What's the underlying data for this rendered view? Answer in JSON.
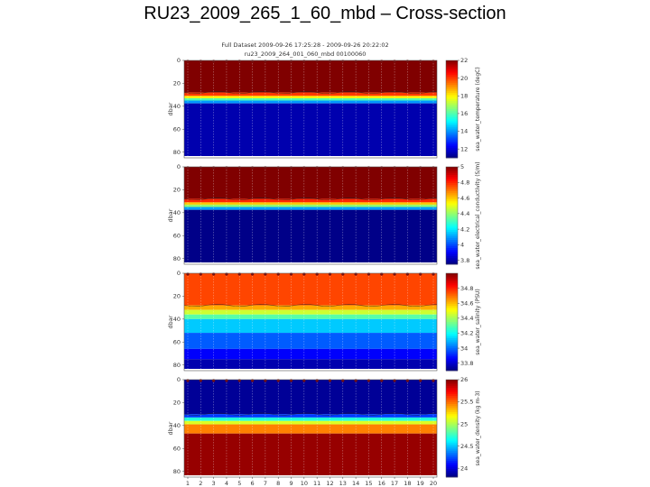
{
  "slide": {
    "title": "RU23_2009_265_1_60_mbd – Cross-section"
  },
  "figure": {
    "header_line1": "Full Dataset 2009-09-26 17:25:28 - 2009-09-26 20:22:02",
    "header_line2": "ru23_2009_264_001_060_mbd 00100060"
  },
  "chart_data": [
    {
      "type": "heatmap",
      "name": "temperature",
      "ylabel": "dbar",
      "ylim": [
        85,
        0
      ],
      "yticks": [
        0,
        20,
        40,
        60,
        80
      ],
      "colorbar": {
        "label": "sea_water_temperature (degC)",
        "range": [
          11,
          22
        ],
        "ticks": [
          22,
          20,
          18,
          16,
          14,
          12
        ]
      },
      "layers": [
        {
          "from": 0,
          "to": 28,
          "value": 22
        },
        {
          "from": 28,
          "to": 31,
          "value": 20
        },
        {
          "from": 31,
          "to": 33,
          "value": 18
        },
        {
          "from": 33,
          "to": 35,
          "value": 16
        },
        {
          "from": 35,
          "to": 37.5,
          "value": 14
        },
        {
          "from": 37.5,
          "to": 85,
          "value": 11.5
        }
      ]
    },
    {
      "type": "heatmap",
      "name": "conductivity",
      "ylabel": "dbar",
      "ylim": [
        85,
        0
      ],
      "yticks": [
        0,
        20,
        40,
        60,
        80
      ],
      "colorbar": {
        "label": "sea_water_electrical_conductivity (S/m)",
        "range": [
          3.75,
          5.0
        ],
        "ticks": [
          5,
          4.8,
          4.6,
          4.4,
          4.2,
          4,
          3.8
        ]
      },
      "layers": [
        {
          "from": 0,
          "to": 28,
          "value": 5.0
        },
        {
          "from": 28,
          "to": 31,
          "value": 4.8
        },
        {
          "from": 31,
          "to": 33,
          "value": 4.6
        },
        {
          "from": 33,
          "to": 35,
          "value": 4.4
        },
        {
          "from": 35,
          "to": 37.5,
          "value": 4.1
        },
        {
          "from": 37.5,
          "to": 85,
          "value": 3.76
        }
      ]
    },
    {
      "type": "heatmap",
      "name": "salinity",
      "ylabel": "dbar",
      "ylim": [
        85,
        0
      ],
      "yticks": [
        0,
        20,
        40,
        60,
        80
      ],
      "colorbar": {
        "label": "sea_water_salinity (PSU)",
        "range": [
          33.7,
          35.0
        ],
        "ticks": [
          34.8,
          34.6,
          34.4,
          34.2,
          34,
          33.8
        ]
      },
      "layers": [
        {
          "from": 0,
          "to": 28,
          "value": 34.75
        },
        {
          "from": 28,
          "to": 32,
          "value": 34.62
        },
        {
          "from": 32,
          "to": 36,
          "value": 34.45
        },
        {
          "from": 36,
          "to": 40,
          "value": 34.3
        },
        {
          "from": 40,
          "to": 52,
          "value": 34.12
        },
        {
          "from": 52,
          "to": 66,
          "value": 33.98
        },
        {
          "from": 66,
          "to": 75,
          "value": 33.86
        },
        {
          "from": 75,
          "to": 85,
          "value": 33.76
        }
      ]
    },
    {
      "type": "heatmap",
      "name": "density",
      "ylabel": "dbar",
      "ylim": [
        85,
        0
      ],
      "yticks": [
        0,
        20,
        40,
        60,
        80
      ],
      "xticks": [
        1,
        2,
        3,
        4,
        5,
        6,
        7,
        8,
        9,
        10,
        11,
        12,
        13,
        14,
        15,
        16,
        17,
        18,
        19,
        20
      ],
      "colorbar": {
        "label": "sea_water_density (kg m-3)",
        "range": [
          23.8,
          26.0
        ],
        "ticks": [
          26,
          25.5,
          25,
          24.5,
          24
        ]
      },
      "layers": [
        {
          "from": 0,
          "to": 30,
          "value": 23.85
        },
        {
          "from": 30,
          "to": 33,
          "value": 24.2
        },
        {
          "from": 33,
          "to": 36,
          "value": 24.7
        },
        {
          "from": 36,
          "to": 39,
          "value": 25.1
        },
        {
          "from": 39,
          "to": 47,
          "value": 25.45
        },
        {
          "from": 47,
          "to": 85,
          "value": 25.95
        }
      ]
    }
  ]
}
